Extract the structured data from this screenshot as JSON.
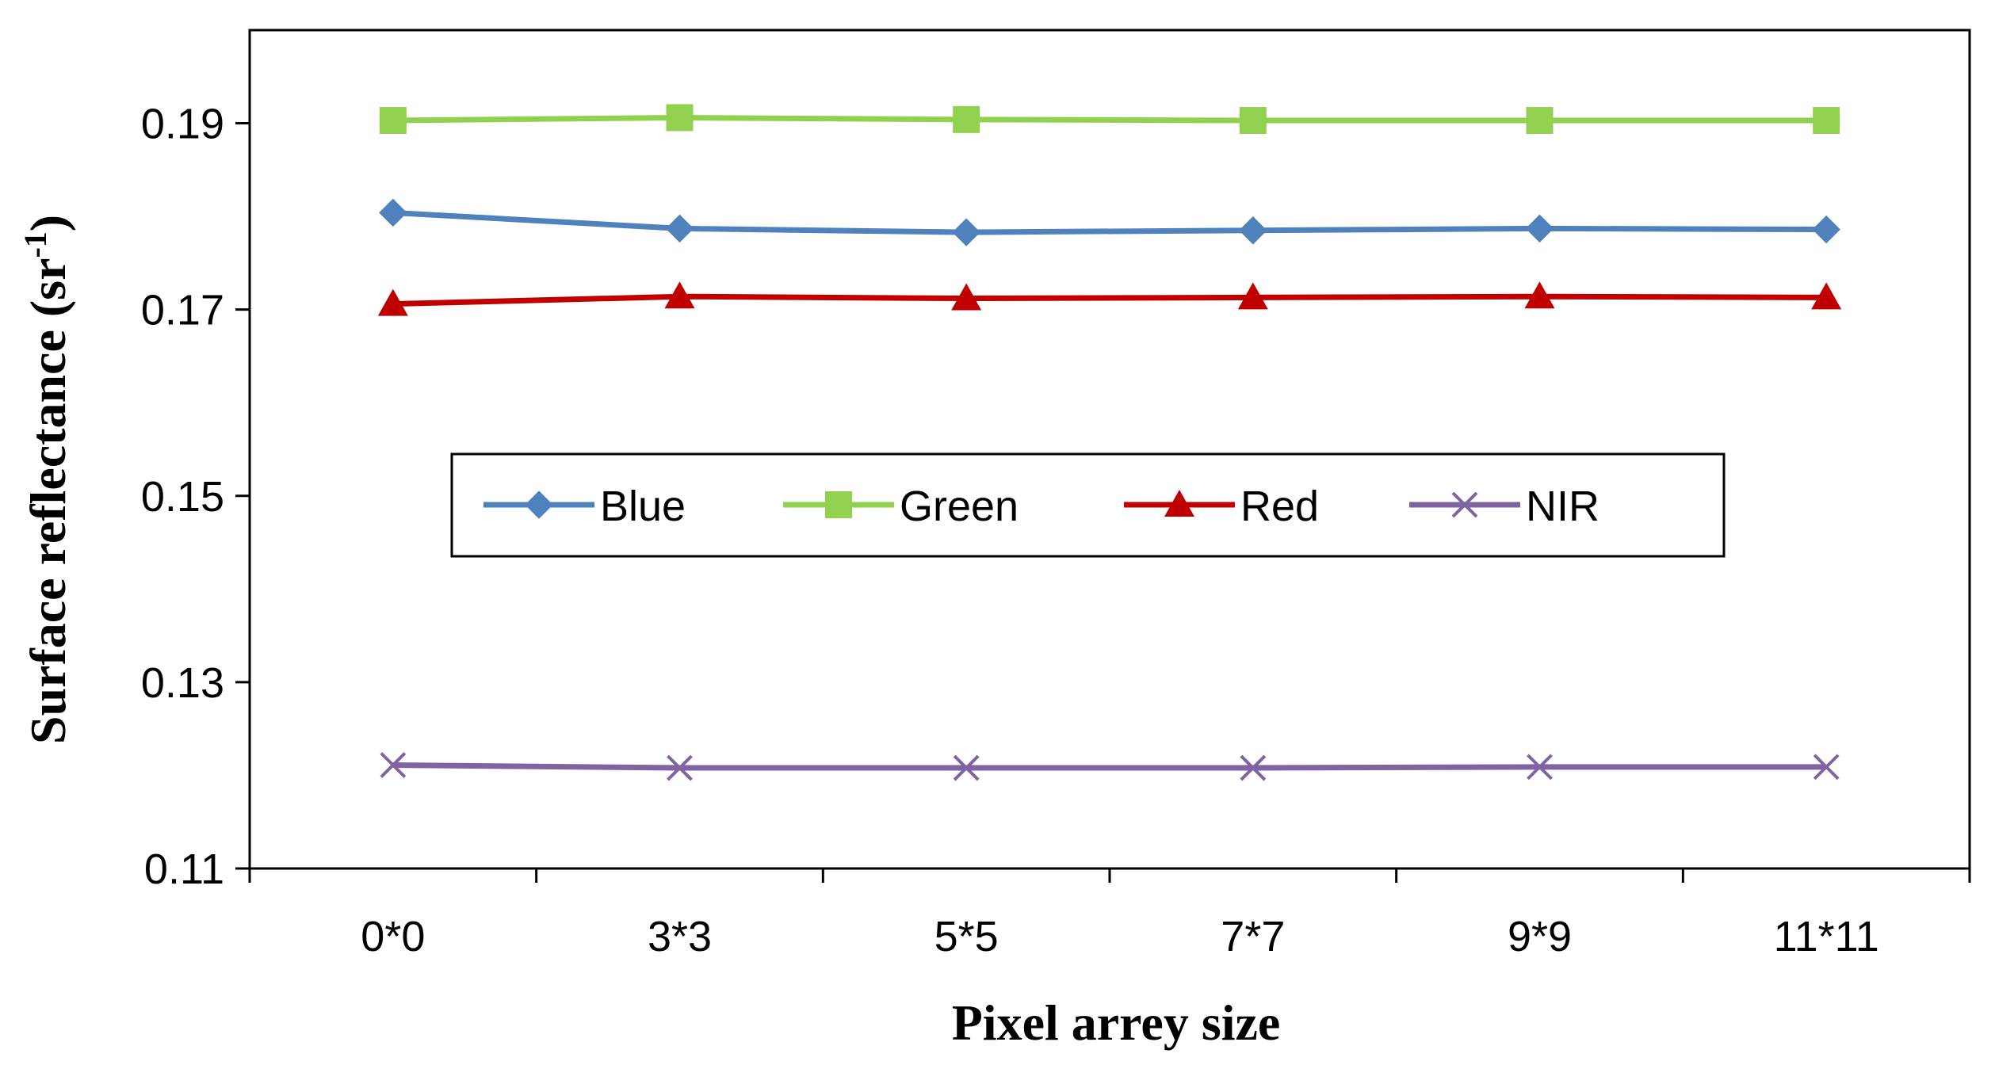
{
  "colors": {
    "blue": "#4f81bd",
    "green": "#92d050",
    "red": "#c00000",
    "nir": "#8064a2",
    "axis": "#000000",
    "background": "#ffffff"
  },
  "chart_data": {
    "type": "line",
    "title": "",
    "xlabel": "Pixel arrey size",
    "ylabel_main": "Surface reflectance (sr",
    "ylabel_sup": "-1",
    "ylabel_close": ")",
    "categories": [
      "0*0",
      "3*3",
      "5*5",
      "7*7",
      "9*9",
      "11*11"
    ],
    "ylim": [
      0.11,
      0.2
    ],
    "yticks": [
      0.11,
      0.13,
      0.15,
      0.17,
      0.19
    ],
    "ytick_labels": [
      "0.11",
      "0.13",
      "0.15",
      "0.17",
      "0.19"
    ],
    "grid": false,
    "legend_position": "center",
    "series": [
      {
        "name": "Blue",
        "color_key": "blue",
        "marker": "diamond",
        "values": [
          0.1804,
          0.1787,
          0.1783,
          0.1785,
          0.1787,
          0.1786
        ]
      },
      {
        "name": "Green",
        "color_key": "green",
        "marker": "square",
        "values": [
          0.1903,
          0.1906,
          0.1904,
          0.1903,
          0.1903,
          0.1903
        ]
      },
      {
        "name": "Red",
        "color_key": "red",
        "marker": "triangle",
        "values": [
          0.1706,
          0.1714,
          0.1712,
          0.1713,
          0.1714,
          0.1713
        ]
      },
      {
        "name": "NIR",
        "color_key": "nir",
        "marker": "x",
        "values": [
          0.1211,
          0.1208,
          0.1208,
          0.1208,
          0.1209,
          0.1209
        ]
      }
    ]
  }
}
